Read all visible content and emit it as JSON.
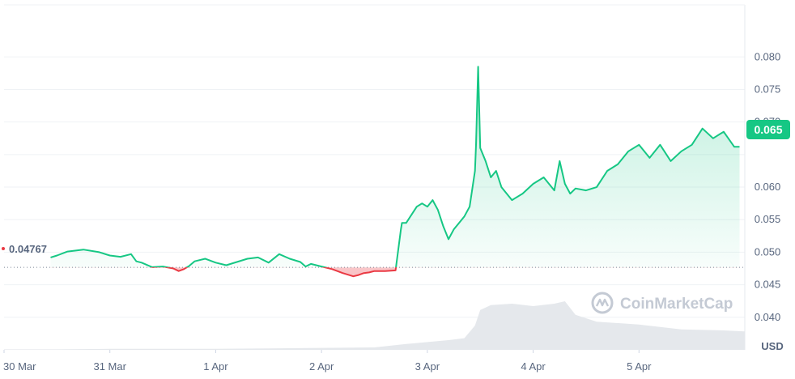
{
  "chart_data": {
    "type": "area",
    "currency_label": "USD",
    "reference_value": 0.04767,
    "reference_label": "0.04767",
    "current_value": 0.065,
    "current_label": "0.065",
    "watermark": "CoinMarketCap",
    "colors": {
      "up": "#16c784",
      "down": "#ea3943",
      "grid": "#eff2f5",
      "axis_text": "#58667e",
      "volume": "#e5e8ec",
      "watermark": "#c4cad4"
    },
    "grid": true,
    "ylim": [
      0.035,
      0.088
    ],
    "y_ticks": [
      0.04,
      0.045,
      0.05,
      0.055,
      0.06,
      0.065,
      0.07,
      0.075,
      0.08
    ],
    "y_tick_labels": [
      "0.040",
      "0.045",
      "0.050",
      "0.055",
      "0.060",
      "0.065",
      "0.070",
      "0.075",
      "0.080"
    ],
    "x_range": [
      0.0,
      7.0
    ],
    "x_ticks": [
      0,
      1,
      2,
      3,
      4,
      5,
      6
    ],
    "x_tick_labels": [
      "30 Mar",
      "31 Mar",
      "1 Apr",
      "2 Apr",
      "3 Apr",
      "4 Apr",
      "5 Apr"
    ],
    "price_x": [
      0.44,
      0.5,
      0.6,
      0.75,
      0.9,
      1.0,
      1.1,
      1.2,
      1.25,
      1.3,
      1.4,
      1.5,
      1.6,
      1.65,
      1.7,
      1.75,
      1.8,
      1.9,
      2.0,
      2.1,
      2.2,
      2.3,
      2.4,
      2.5,
      2.6,
      2.7,
      2.8,
      2.85,
      2.9,
      3.0,
      3.1,
      3.2,
      3.3,
      3.35,
      3.4,
      3.45,
      3.5,
      3.6,
      3.7,
      3.75,
      3.76,
      3.8,
      3.9,
      3.95,
      4.0,
      4.05,
      4.1,
      4.15,
      4.2,
      4.25,
      4.3,
      4.35,
      4.4,
      4.45,
      4.46,
      4.48,
      4.5,
      4.55,
      4.6,
      4.65,
      4.7,
      4.8,
      4.9,
      5.0,
      5.1,
      5.2,
      5.25,
      5.3,
      5.35,
      5.4,
      5.5,
      5.6,
      5.7,
      5.8,
      5.9,
      6.0,
      6.1,
      6.2,
      6.3,
      6.4,
      6.5,
      6.6,
      6.7,
      6.8,
      6.9,
      6.95
    ],
    "price_y": [
      0.0492,
      0.0495,
      0.0501,
      0.0504,
      0.05,
      0.0495,
      0.0493,
      0.0497,
      0.0486,
      0.0484,
      0.0477,
      0.0478,
      0.0475,
      0.0471,
      0.0474,
      0.0479,
      0.0486,
      0.049,
      0.0484,
      0.048,
      0.0485,
      0.049,
      0.0492,
      0.0484,
      0.0497,
      0.049,
      0.0485,
      0.0478,
      0.0482,
      0.0478,
      0.0474,
      0.0468,
      0.0463,
      0.0465,
      0.0468,
      0.0469,
      0.0471,
      0.0471,
      0.0472,
      0.0535,
      0.0545,
      0.0545,
      0.057,
      0.0575,
      0.057,
      0.058,
      0.0565,
      0.054,
      0.052,
      0.0535,
      0.0545,
      0.0555,
      0.057,
      0.0625,
      0.0665,
      0.0785,
      0.066,
      0.064,
      0.0615,
      0.0625,
      0.06,
      0.058,
      0.059,
      0.0605,
      0.0615,
      0.0595,
      0.064,
      0.0605,
      0.059,
      0.0598,
      0.0595,
      0.06,
      0.0625,
      0.0635,
      0.0655,
      0.0665,
      0.0645,
      0.0665,
      0.064,
      0.0655,
      0.0665,
      0.069,
      0.0675,
      0.0685,
      0.0662,
      0.0662
    ],
    "volume_x": [
      0.0,
      0.5,
      1.0,
      1.5,
      2.0,
      2.5,
      3.0,
      3.5,
      3.8,
      4.0,
      4.2,
      4.35,
      4.45,
      4.5,
      4.6,
      4.8,
      5.0,
      5.2,
      5.3,
      5.4,
      5.6,
      6.0,
      6.4,
      6.8,
      7.0
    ],
    "volume_y": [
      0.01,
      0.01,
      0.02,
      0.02,
      0.02,
      0.03,
      0.04,
      0.05,
      0.12,
      0.16,
      0.2,
      0.24,
      0.5,
      0.82,
      0.92,
      0.95,
      0.9,
      0.95,
      1.0,
      0.72,
      0.58,
      0.52,
      0.42,
      0.4,
      0.38
    ]
  }
}
